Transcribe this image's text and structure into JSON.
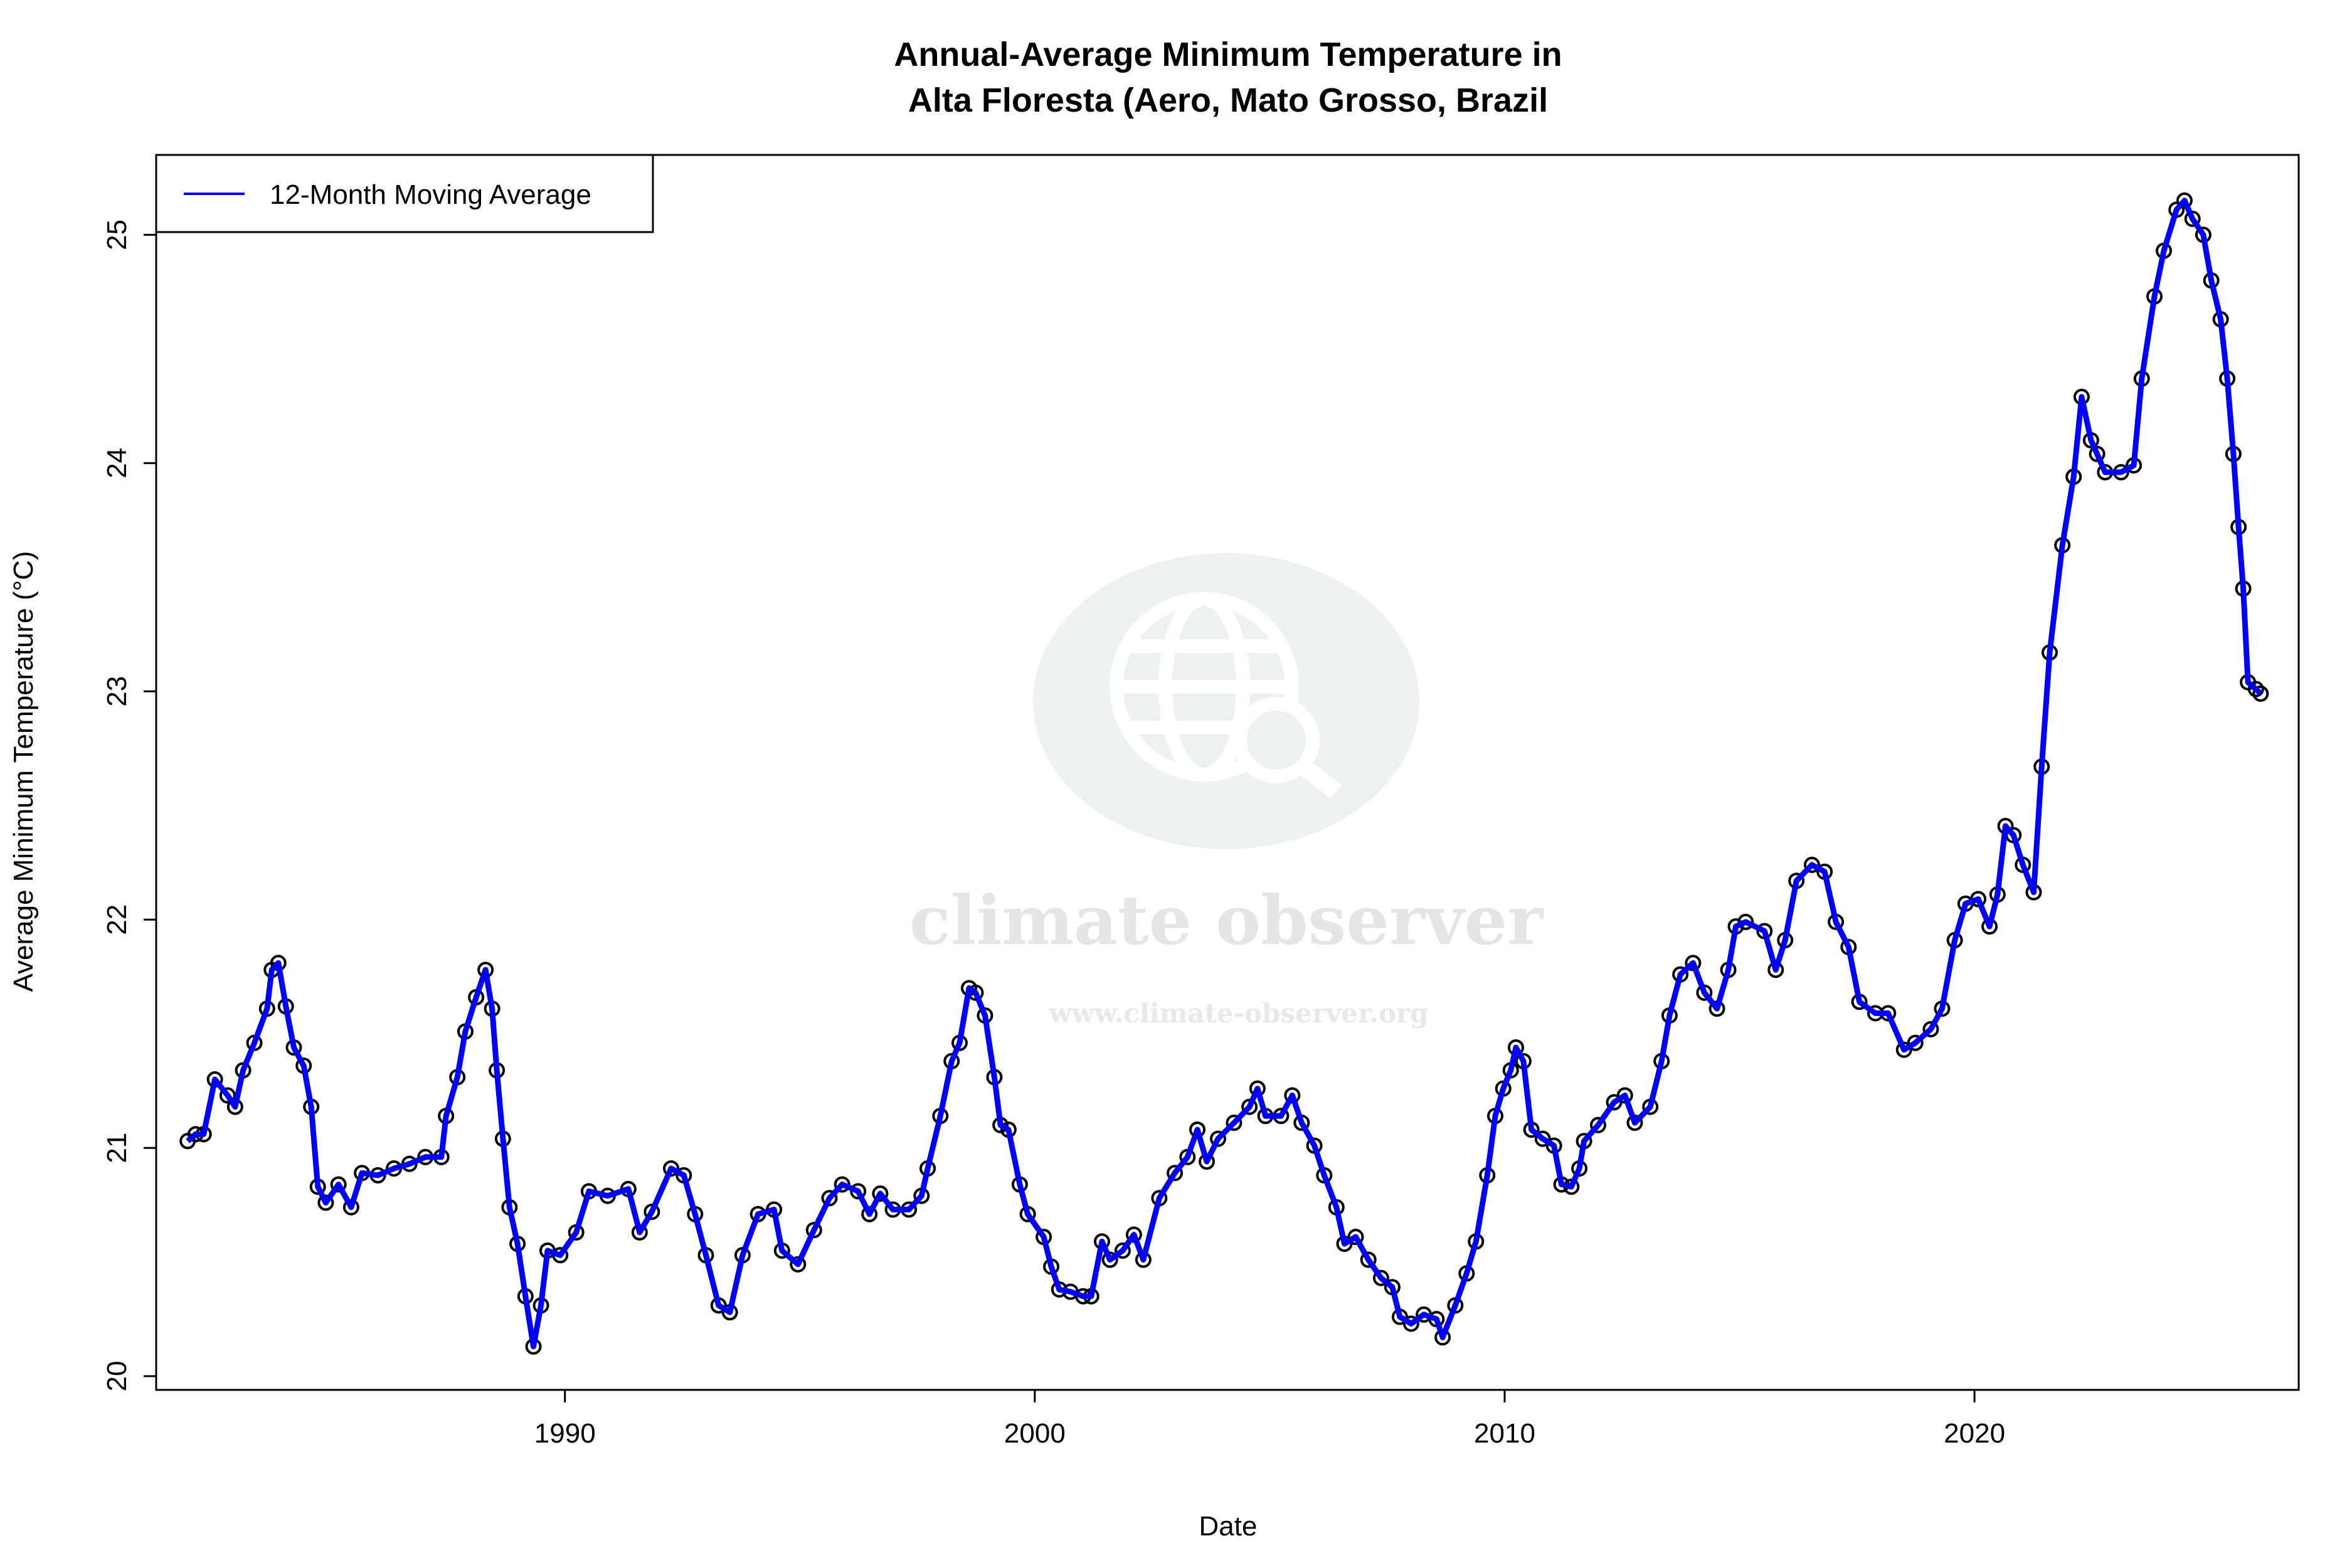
{
  "chart_data": {
    "type": "line",
    "title": "Annual-Average Minimum Temperature in\nAlta Floresta (Aero, Mato Grosso, Brazil",
    "title_lines": [
      "Annual-Average Minimum Temperature in",
      "Alta Floresta (Aero, Mato Grosso, Brazil"
    ],
    "xlabel": "Date",
    "ylabel": "Average Minimum Temperature (°C)",
    "xlim": [
      1981.3,
      2026.9
    ],
    "ylim": [
      19.94,
      25.35
    ],
    "x_ticks": [
      1990,
      2000,
      2010,
      2020
    ],
    "y_ticks": [
      20,
      21,
      22,
      23,
      24,
      25
    ],
    "grid": false,
    "legend": {
      "placement": "top-left",
      "entries": [
        "12-Month Moving Average"
      ]
    },
    "series": [
      {
        "name": "12-Month Moving Average",
        "color": "#0000ff",
        "marker_color": "#000000",
        "x": [
          1981.97,
          1982.14,
          1982.31,
          1982.55,
          1982.82,
          1982.98,
          1983.15,
          1983.39,
          1983.66,
          1983.76,
          1983.9,
          1984.06,
          1984.23,
          1984.44,
          1984.6,
          1984.74,
          1984.91,
          1985.18,
          1985.45,
          1985.68,
          1986.02,
          1986.36,
          1986.69,
          1987.03,
          1987.37,
          1987.47,
          1987.71,
          1987.88,
          1988.11,
          1988.31,
          1988.45,
          1988.55,
          1988.68,
          1988.82,
          1988.99,
          1989.16,
          1989.33,
          1989.49,
          1989.63,
          1989.9,
          1990.24,
          1990.51,
          1990.91,
          1991.35,
          1991.59,
          1991.85,
          1992.26,
          1992.53,
          1992.77,
          1993.0,
          1993.27,
          1993.51,
          1993.78,
          1994.11,
          1994.45,
          1994.62,
          1994.96,
          1995.3,
          1995.63,
          1995.9,
          1996.24,
          1996.48,
          1996.71,
          1996.98,
          1997.32,
          1997.59,
          1997.72,
          1997.99,
          1998.23,
          1998.4,
          1998.6,
          1998.74,
          1998.94,
          1999.14,
          1999.27,
          1999.44,
          1999.68,
          1999.85,
          2000.19,
          2000.35,
          2000.52,
          2000.76,
          2001.03,
          2001.2,
          2001.43,
          2001.6,
          2001.87,
          2002.11,
          2002.31,
          2002.65,
          2002.98,
          2003.25,
          2003.46,
          2003.66,
          2003.9,
          2004.24,
          2004.57,
          2004.74,
          2004.91,
          2005.24,
          2005.48,
          2005.68,
          2005.95,
          2006.16,
          2006.42,
          2006.59,
          2006.83,
          2007.1,
          2007.37,
          2007.61,
          2007.77,
          2008.01,
          2008.28,
          2008.55,
          2008.68,
          2008.95,
          2009.19,
          2009.39,
          2009.63,
          2009.8,
          2009.97,
          2010.13,
          2010.24,
          2010.4,
          2010.57,
          2010.81,
          2011.05,
          2011.21,
          2011.42,
          2011.59,
          2011.69,
          2011.99,
          2012.33,
          2012.56,
          2012.77,
          2013.1,
          2013.34,
          2013.51,
          2013.74,
          2014.01,
          2014.25,
          2014.52,
          2014.76,
          2014.92,
          2015.13,
          2015.53,
          2015.77,
          2015.97,
          2016.21,
          2016.54,
          2016.81,
          2017.05,
          2017.32,
          2017.55,
          2017.89,
          2018.16,
          2018.5,
          2018.74,
          2019.07,
          2019.31,
          2019.58,
          2019.81,
          2020.08,
          2020.32,
          2020.49,
          2020.66,
          2020.83,
          2021.03,
          2021.26,
          2021.43,
          2021.6,
          2021.87,
          2022.11,
          2022.28,
          2022.48,
          2022.61,
          2022.78,
          2023.12,
          2023.39,
          2023.56,
          2023.83,
          2024.03,
          2024.3,
          2024.47,
          2024.64,
          2024.87,
          2025.04,
          2025.24,
          2025.38,
          2025.51,
          2025.62,
          2025.72,
          2025.82,
          2025.99,
          2026.09
        ],
        "y": [
          21.03,
          21.06,
          21.06,
          21.3,
          21.23,
          21.18,
          21.34,
          21.46,
          21.61,
          21.78,
          21.81,
          21.62,
          21.44,
          21.36,
          21.18,
          20.83,
          20.76,
          20.84,
          20.74,
          20.89,
          20.88,
          20.91,
          20.93,
          20.96,
          20.96,
          21.14,
          21.31,
          21.51,
          21.66,
          21.78,
          21.61,
          21.34,
          21.04,
          20.74,
          20.58,
          20.35,
          20.13,
          20.31,
          20.55,
          20.53,
          20.63,
          20.81,
          20.79,
          20.82,
          20.63,
          20.72,
          20.91,
          20.88,
          20.71,
          20.53,
          20.31,
          20.28,
          20.53,
          20.71,
          20.73,
          20.55,
          20.49,
          20.64,
          20.78,
          20.84,
          20.81,
          20.71,
          20.8,
          20.73,
          20.73,
          20.79,
          20.91,
          21.14,
          21.38,
          21.46,
          21.7,
          21.68,
          21.58,
          21.31,
          21.1,
          21.08,
          20.84,
          20.71,
          20.61,
          20.48,
          20.38,
          20.37,
          20.35,
          20.35,
          20.59,
          20.51,
          20.55,
          20.62,
          20.51,
          20.78,
          20.89,
          20.96,
          21.08,
          20.94,
          21.04,
          21.11,
          21.18,
          21.26,
          21.14,
          21.14,
          21.23,
          21.11,
          21.01,
          20.88,
          20.74,
          20.58,
          20.61,
          20.51,
          20.43,
          20.39,
          20.26,
          20.23,
          20.27,
          20.25,
          20.17,
          20.31,
          20.45,
          20.59,
          20.88,
          21.14,
          21.26,
          21.34,
          21.44,
          21.38,
          21.08,
          21.04,
          21.01,
          20.84,
          20.83,
          20.91,
          21.03,
          21.1,
          21.2,
          21.23,
          21.11,
          21.18,
          21.38,
          21.58,
          21.76,
          21.81,
          21.68,
          21.61,
          21.78,
          21.97,
          21.99,
          21.95,
          21.78,
          21.91,
          22.17,
          22.24,
          22.21,
          21.99,
          21.88,
          21.64,
          21.59,
          21.59,
          21.43,
          21.46,
          21.52,
          21.61,
          21.91,
          22.07,
          22.09,
          21.97,
          22.11,
          22.41,
          22.37,
          22.24,
          22.12,
          22.67,
          23.17,
          23.64,
          23.94,
          24.29,
          24.1,
          24.04,
          23.96,
          23.96,
          23.99,
          24.37,
          24.73,
          24.93,
          25.11,
          25.15,
          25.07,
          25.0,
          24.8,
          24.63,
          24.37,
          24.04,
          23.72,
          23.45,
          23.04,
          23.01,
          22.99
        ]
      }
    ]
  },
  "watermark": {
    "brand": "climate observer",
    "url": "www.climate-observer.org",
    "icon": "globe-search-icon"
  }
}
